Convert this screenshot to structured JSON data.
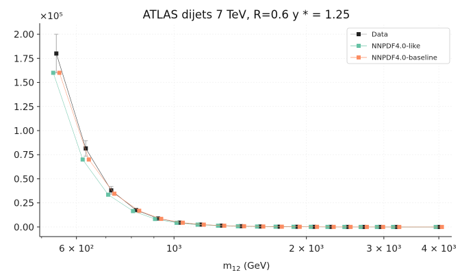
{
  "chart_data": {
    "type": "scatter",
    "title": "ATLAS dijets 7 TeV, R=0.6 y * = 1.25",
    "xlabel": "m",
    "xlabel_sub": "12",
    "xlabel_unit": " (GeV)",
    "ylabel": "",
    "xscale": "log",
    "xlim": [
      495,
      4280
    ],
    "ylim": [
      -0.1,
      2.1
    ],
    "y_multiplier": "×10⁵",
    "y_ticks": [
      0.0,
      0.25,
      0.5,
      0.75,
      1.0,
      1.25,
      1.5,
      1.75,
      2.0
    ],
    "y_tick_labels": [
      "0.00",
      "0.25",
      "0.50",
      "0.75",
      "1.00",
      "1.25",
      "1.50",
      "1.75",
      "2.00"
    ],
    "x_major_ticks": [
      {
        "value": 600,
        "label": "6 × 10²"
      },
      {
        "value": 1000,
        "label": "10³"
      },
      {
        "value": 2000,
        "label": "2 × 10³"
      },
      {
        "value": 3000,
        "label": "3 × 10³"
      },
      {
        "value": 4000,
        "label": "4 × 10³"
      }
    ],
    "x_minor_ticks": [
      500,
      700,
      800,
      900
    ],
    "grid": true,
    "legend_position": "top-right",
    "x": [
      540,
      630,
      720,
      820,
      920,
      1030,
      1150,
      1280,
      1420,
      1570,
      1730,
      1900,
      2080,
      2270,
      2480,
      2700,
      2940,
      3200,
      4000
    ],
    "series": [
      {
        "name": "Data",
        "color": "#222222",
        "values": [
          1.8,
          0.815,
          0.38,
          0.175,
          0.088,
          0.045,
          0.025,
          0.014,
          0.008,
          0.005,
          0.003,
          0.002,
          0.0013,
          0.0008,
          0.0005,
          0.0003,
          0.0002,
          0.0001,
          4e-05
        ],
        "errors": [
          0.2,
          0.08,
          0.04,
          0.017,
          0.009,
          0.0045,
          0.0025,
          0.0014,
          0.0008,
          0.0005,
          0.0003,
          0.0002,
          0.00013,
          8e-05,
          5e-05,
          3e-05,
          2e-05,
          1e-05,
          4e-06
        ]
      },
      {
        "name": "NNPDF4.0-like",
        "color": "#66c2a5",
        "values": [
          1.6,
          0.7,
          0.335,
          0.165,
          0.083,
          0.043,
          0.024,
          0.013,
          0.0075,
          0.0045,
          0.0028,
          0.0018,
          0.0012,
          0.0007,
          0.00045,
          0.00028,
          0.00018,
          0.0001,
          3e-05
        ]
      },
      {
        "name": "NNPDF4.0-baseline",
        "color": "#fc8d62",
        "values": [
          1.6,
          0.7,
          0.345,
          0.168,
          0.084,
          0.044,
          0.024,
          0.013,
          0.0076,
          0.0046,
          0.0028,
          0.0018,
          0.0012,
          0.0007,
          0.00045,
          0.00028,
          0.00018,
          0.0001,
          3e-05
        ]
      }
    ]
  }
}
